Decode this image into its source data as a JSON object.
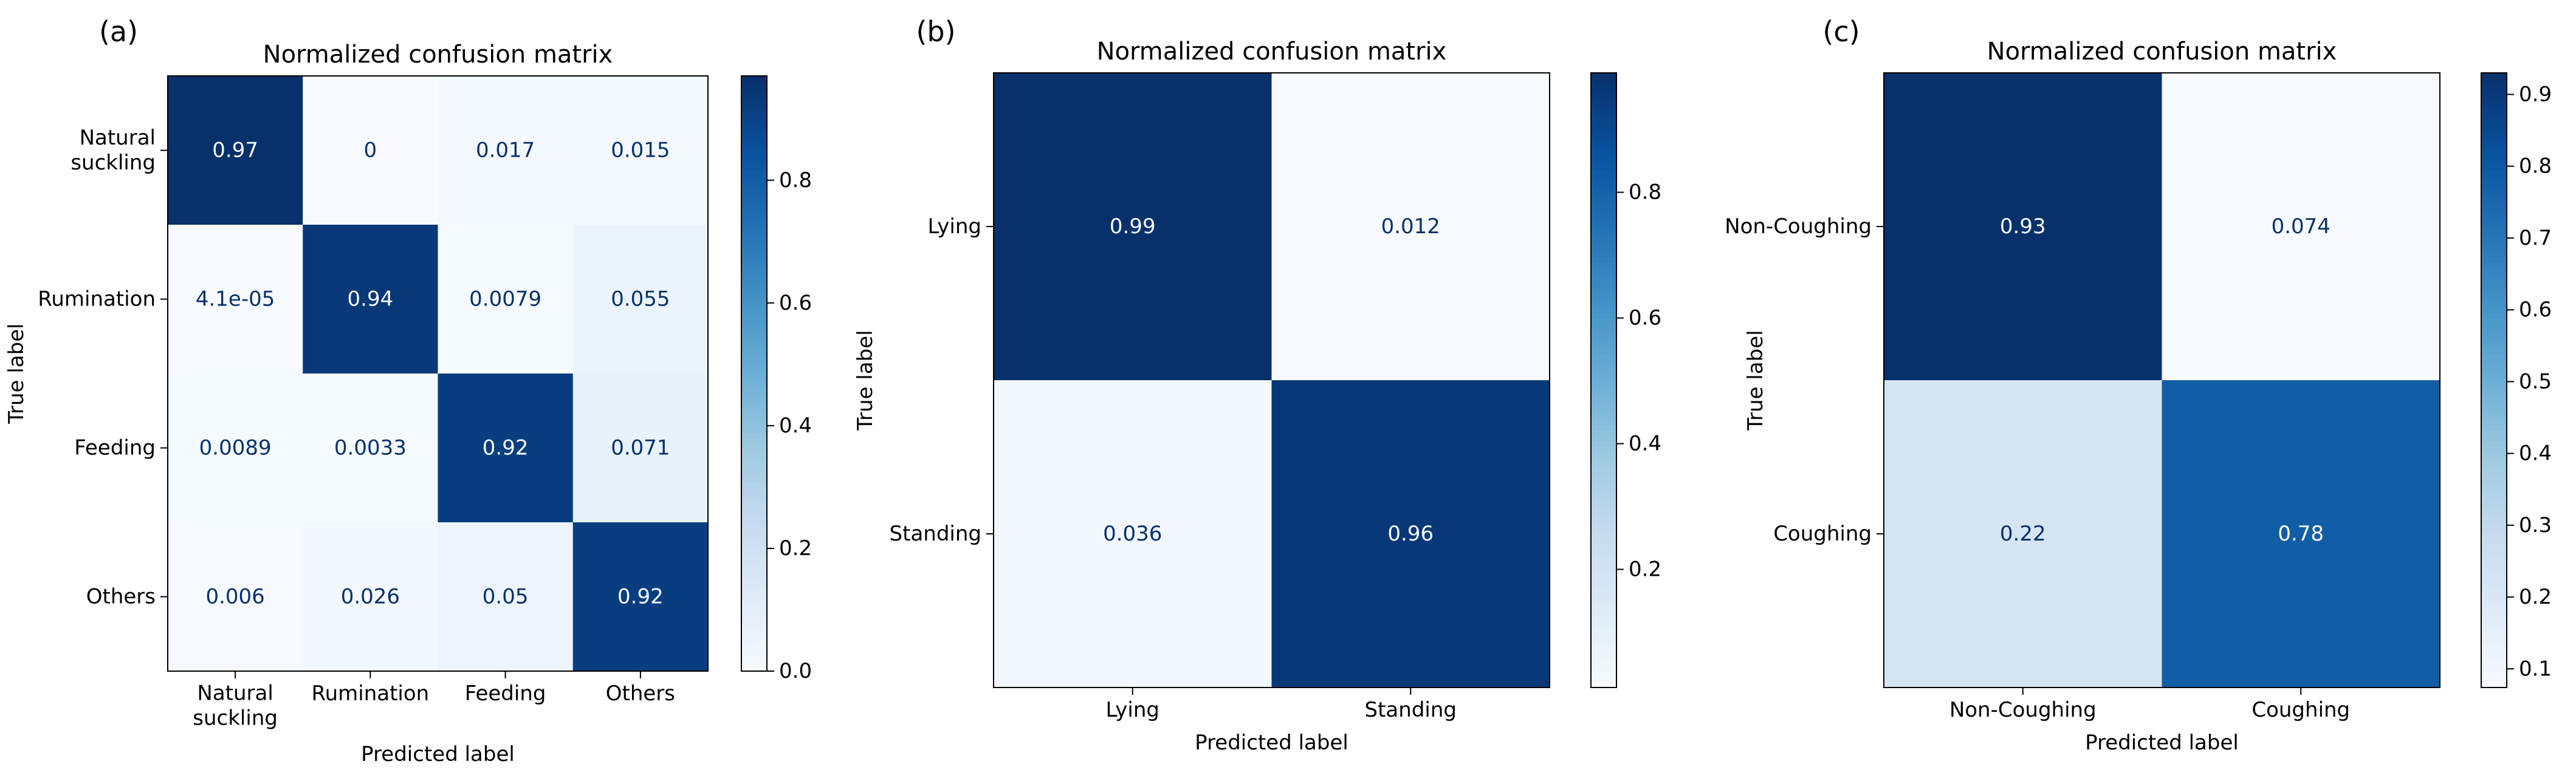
{
  "chart_data": [
    {
      "type": "heatmap",
      "panel_label": "(a)",
      "title": "Normalized confusion matrix",
      "xlabel": "Predicted label",
      "ylabel": "True label",
      "x_tick_labels": [
        "Natural\nsuckling",
        "Rumination",
        "Feeding",
        "Others"
      ],
      "y_tick_labels": [
        "Natural\nsuckling",
        "Rumination",
        "Feeding",
        "Others"
      ],
      "values": [
        [
          0.97,
          0,
          0.017,
          0.015
        ],
        [
          4.1e-05,
          0.94,
          0.0079,
          0.055
        ],
        [
          0.0089,
          0.0033,
          0.92,
          0.071
        ],
        [
          0.006,
          0.026,
          0.05,
          0.92
        ]
      ],
      "cell_labels": [
        [
          "0.97",
          "0",
          "0.017",
          "0.015"
        ],
        [
          "4.1e-05",
          "0.94",
          "0.0079",
          "0.055"
        ],
        [
          "0.0089",
          "0.0033",
          "0.92",
          "0.071"
        ],
        [
          "0.006",
          "0.026",
          "0.05",
          "0.92"
        ]
      ],
      "colorbar_range": [
        0,
        0.97
      ],
      "colorbar_ticks": [
        0.0,
        0.2,
        0.4,
        0.6,
        0.8
      ],
      "colorbar_tick_labels": [
        "0.0",
        "0.2",
        "0.4",
        "0.6",
        "0.8"
      ],
      "colormap": "Blues"
    },
    {
      "type": "heatmap",
      "panel_label": "(b)",
      "title": "Normalized confusion matrix",
      "xlabel": "Predicted label",
      "ylabel": "True label",
      "x_tick_labels": [
        "Lying",
        "Standing"
      ],
      "y_tick_labels": [
        "Lying",
        "Standing"
      ],
      "values": [
        [
          0.99,
          0.012
        ],
        [
          0.036,
          0.96
        ]
      ],
      "cell_labels": [
        [
          "0.99",
          "0.012"
        ],
        [
          "0.036",
          "0.96"
        ]
      ],
      "colorbar_range": [
        0.012,
        0.99
      ],
      "colorbar_ticks": [
        0.2,
        0.4,
        0.6,
        0.8
      ],
      "colorbar_tick_labels": [
        "0.2",
        "0.4",
        "0.6",
        "0.8"
      ],
      "colormap": "Blues"
    },
    {
      "type": "heatmap",
      "panel_label": "(c)",
      "title": "Normalized confusion matrix",
      "xlabel": "Predicted label",
      "ylabel": "True label",
      "x_tick_labels": [
        "Non-Coughing",
        "Coughing"
      ],
      "y_tick_labels": [
        "Non-Coughing",
        "Coughing"
      ],
      "values": [
        [
          0.93,
          0.074
        ],
        [
          0.22,
          0.78
        ]
      ],
      "cell_labels": [
        [
          "0.93",
          "0.074"
        ],
        [
          "0.22",
          "0.78"
        ]
      ],
      "colorbar_range": [
        0.074,
        0.93
      ],
      "colorbar_ticks": [
        0.1,
        0.2,
        0.3,
        0.4,
        0.5,
        0.6,
        0.7,
        0.8,
        0.9
      ],
      "colorbar_tick_labels": [
        "0.1",
        "0.2",
        "0.3",
        "0.4",
        "0.5",
        "0.6",
        "0.7",
        "0.8",
        "0.9"
      ],
      "colormap": "Blues"
    }
  ]
}
